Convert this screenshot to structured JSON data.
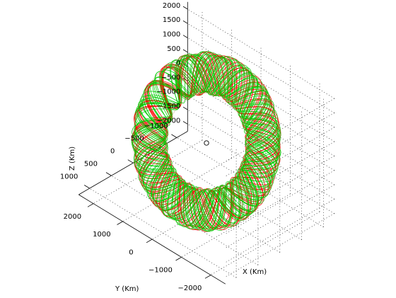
{
  "chart_data": {
    "type": "line",
    "view": "3d",
    "xlabel": "X (Km)",
    "ylabel": "Y (Km)",
    "zlabel": "Z (Km)",
    "x_ticks": [
      -2000,
      -1000,
      0,
      1000,
      2000
    ],
    "y_ticks": [
      -1000,
      -500,
      0,
      500,
      1000
    ],
    "z_ticks": [
      2000,
      1500,
      1000,
      500,
      0,
      -500,
      -1000,
      -1500,
      -2000
    ],
    "x_tick_labels": [
      "−2000",
      "−1000",
      "0",
      "1000",
      "2000"
    ],
    "y_tick_labels": [
      "−1000",
      "−500",
      "0",
      "500",
      "1000"
    ],
    "z_tick_labels": [
      "2000",
      "1500",
      "1000",
      "500",
      "0",
      "−500",
      "−1000",
      "−1500",
      "−2000"
    ],
    "xlim": [
      -2500,
      2500
    ],
    "ylim": [
      -1250,
      1250
    ],
    "zlim": [
      -2250,
      2250
    ],
    "grid": true,
    "marker": {
      "symbol": "O",
      "x": 0,
      "y": 0,
      "z": 0
    },
    "series": [
      {
        "color": "#ff0000",
        "description": "dense toroidal orbit trajectory"
      },
      {
        "color": "#00cc00",
        "description": "dense toroidal orbit trajectory"
      }
    ],
    "torus": {
      "center_km": [
        0,
        0,
        0
      ],
      "inner_radius_km": 1200,
      "outer_radius_km": 2100
    }
  }
}
